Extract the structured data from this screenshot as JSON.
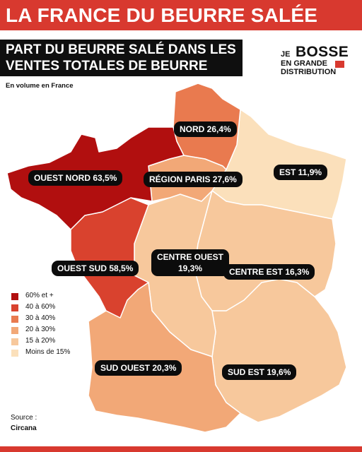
{
  "title": "LA FRANCE DU BEURRE SALÉE",
  "subtitle_line1": "PART DU BEURRE SALÉ DANS LES",
  "subtitle_line2": "VENTES TOTALES DE BEURRE",
  "note": "En volume en France",
  "brand": {
    "je": "JE",
    "bosse": "BOSSE",
    "en_grande": "EN GRANDE",
    "distribution": "DISTRIBUTION"
  },
  "colors": {
    "brand_red": "#d8392f",
    "bin_60_plus": "#b10f0f",
    "bin_40_60": "#d9422e",
    "bin_30_40": "#e97a4f",
    "bin_20_30": "#f2a877",
    "bin_15_20": "#f7c89c",
    "bin_under_15": "#fbe0bb"
  },
  "regions": [
    {
      "name": "OUEST NORD",
      "value": "63,5%",
      "bin": "60% et +"
    },
    {
      "name": "OUEST SUD",
      "value": "58,5%",
      "bin": "40 à 60%"
    },
    {
      "name": "NORD",
      "value": "26,4%",
      "bin": "20 à 30%"
    },
    {
      "name": "RÉGION PARIS",
      "value": "27,6%",
      "bin": "20 à 30%"
    },
    {
      "name": "EST",
      "value": "11,9%",
      "bin": "Moins de 15%"
    },
    {
      "name": "CENTRE OUEST",
      "value": "19,3%",
      "bin": "15 à 20%"
    },
    {
      "name": "CENTRE EST",
      "value": "16,3%",
      "bin": "15 à 20%"
    },
    {
      "name": "SUD OUEST",
      "value": "20,3%",
      "bin": "20 à 30%"
    },
    {
      "name": "SUD EST",
      "value": "19,6%",
      "bin": "15 à 20%"
    }
  ],
  "labels": {
    "ouest_nord": "OUEST NORD 63,5%",
    "ouest_sud": "OUEST SUD 58,5%",
    "nord": "NORD 26,4%",
    "region_paris": "RÉGION PARIS 27,6%",
    "est": "EST 11,9%",
    "centre_ouest_1": "CENTRE OUEST",
    "centre_ouest_2": "19,3%",
    "centre_est": "CENTRE EST 16,3%",
    "sud_ouest": "SUD OUEST 20,3%",
    "sud_est": "SUD EST 19,6%"
  },
  "legend": [
    "60% et +",
    "40 à 60%",
    "30 à 40%",
    "20 à 30%",
    "15 à 20%",
    "Moins de 15%"
  ],
  "source_label": "Source :",
  "source_name": "Circana"
}
